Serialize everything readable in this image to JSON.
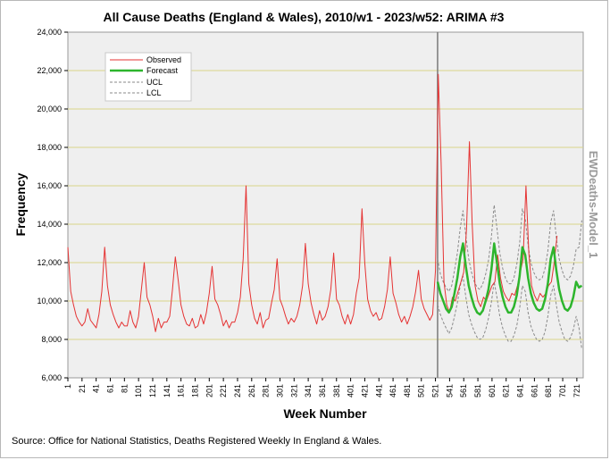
{
  "chart_data": {
    "type": "line",
    "title": "All Cause Deaths (England & Wales), 2010/w1 - 2023/w52: ARIMA #3",
    "xlabel": "Week Number",
    "ylabel": "Frequency",
    "side_label": "EWDeaths-Model_1",
    "source": "Source: Office for National Statistics, Deaths Registered Weekly In England & Wales.",
    "xlim": [
      1,
      730
    ],
    "ylim": [
      6000,
      24000
    ],
    "y_ticks": [
      6000,
      8000,
      10000,
      12000,
      14000,
      16000,
      18000,
      20000,
      22000,
      24000
    ],
    "y_tick_labels": [
      "6,000",
      "8,000",
      "10,000",
      "12,000",
      "14,000",
      "16,000",
      "18,000",
      "20,000",
      "22,000",
      "24,000"
    ],
    "x_ticks": [
      1,
      21,
      41,
      61,
      81,
      101,
      121,
      141,
      161,
      181,
      201,
      221,
      241,
      261,
      281,
      301,
      321,
      341,
      361,
      381,
      401,
      421,
      441,
      461,
      481,
      501,
      521,
      541,
      561,
      581,
      601,
      621,
      641,
      661,
      681,
      701,
      721
    ],
    "forecast_start_week": 524,
    "grid": true,
    "legend": {
      "position": "top-left",
      "entries": [
        {
          "name": "Observed",
          "color": "#e53333",
          "style": "solid"
        },
        {
          "name": "Forecast",
          "color": "#2db52d",
          "style": "solid"
        },
        {
          "name": "UCL",
          "color": "#8a8a8a",
          "style": "dashed"
        },
        {
          "name": "LCL",
          "color": "#8a8a8a",
          "style": "dashed"
        }
      ]
    },
    "series": [
      {
        "name": "Observed",
        "color": "#e53333",
        "weeks_per_point": 4,
        "start_week": 1,
        "values": [
          12800,
          10500,
          9800,
          9200,
          8900,
          8700,
          8900,
          9600,
          9000,
          8800,
          8600,
          9300,
          10500,
          12800,
          10800,
          9800,
          9300,
          8900,
          8600,
          8900,
          8700,
          8700,
          9500,
          8900,
          8600,
          9200,
          10600,
          12000,
          10200,
          9800,
          9200,
          8400,
          9100,
          8600,
          8900,
          8900,
          9200,
          10600,
          12300,
          11100,
          9800,
          9200,
          8800,
          8700,
          9100,
          8600,
          8700,
          9300,
          8800,
          9400,
          10400,
          11800,
          10100,
          9800,
          9300,
          8700,
          9000,
          8600,
          8900,
          8900,
          9400,
          10200,
          12200,
          16000,
          10900,
          9800,
          9100,
          8800,
          9400,
          8600,
          9000,
          9100,
          9900,
          10600,
          12200,
          10100,
          9700,
          9200,
          8800,
          9100,
          8900,
          9200,
          9800,
          10800,
          13000,
          10900,
          9900,
          9300,
          8800,
          9500,
          9000,
          9200,
          9700,
          10600,
          12500,
          10100,
          9800,
          9200,
          8800,
          9300,
          8800,
          9300,
          10400,
          11200,
          14800,
          12000,
          10100,
          9500,
          9200,
          9400,
          9000,
          9100,
          9700,
          10600,
          12300,
          10400,
          9900,
          9300,
          8900,
          9200,
          8800,
          9200,
          9700,
          10500,
          11600,
          10100,
          9600,
          9300,
          9000,
          9300,
          11600,
          21800,
          17200,
          11000,
          9800,
          9400,
          10200,
          10000,
          10500,
          11000,
          11500,
          13800,
          18300,
          14000,
          10800,
          10000,
          9700,
          10200,
          10000,
          10400,
          10800,
          11000,
          12400,
          11200,
          10500,
          10200,
          10000,
          10400,
          10300,
          10800,
          11500,
          12200,
          16000,
          12500,
          10800,
          10300,
          10000,
          10400,
          10200,
          10400,
          10800,
          11000,
          12000,
          13400
        ]
      },
      {
        "name": "Forecast",
        "color": "#2db52d",
        "weeks_per_point": 4,
        "start_week": 524,
        "values": [
          11000,
          10400,
          10000,
          9600,
          9400,
          9700,
          10400,
          11200,
          12300,
          13000,
          11800,
          10800,
          10200,
          9700,
          9400,
          9300,
          9500,
          10000,
          10600,
          11600,
          13000,
          12000,
          10900,
          10200,
          9700,
          9400,
          9400,
          9700,
          10300,
          11300,
          12800,
          12400,
          11200,
          10400,
          9900,
          9600,
          9500,
          9600,
          10100,
          10900,
          12200,
          12800,
          11600,
          10600,
          10000,
          9600,
          9500,
          9700,
          10200,
          11000,
          10700,
          10800
        ]
      },
      {
        "name": "UCL",
        "color": "#8a8a8a",
        "weeks_per_point": 4,
        "start_week": 524,
        "values": [
          12200,
          11400,
          11000,
          10700,
          10500,
          10800,
          11600,
          12500,
          13800,
          14700,
          13400,
          12200,
          11500,
          11000,
          10700,
          10600,
          10900,
          11400,
          12100,
          13300,
          15000,
          13800,
          12500,
          11700,
          11200,
          10900,
          10900,
          11200,
          11900,
          13000,
          14800,
          14300,
          12900,
          12000,
          11500,
          11200,
          11100,
          11200,
          11700,
          12600,
          14100,
          14700,
          13300,
          12200,
          11600,
          11200,
          11100,
          11300,
          11800,
          12700,
          12800,
          14200
        ]
      },
      {
        "name": "LCL",
        "color": "#8a8a8a",
        "weeks_per_point": 4,
        "start_week": 524,
        "values": [
          9800,
          9300,
          8900,
          8600,
          8300,
          8600,
          9200,
          9900,
          10800,
          11300,
          10200,
          9300,
          8800,
          8400,
          8100,
          8000,
          8100,
          8500,
          9100,
          9900,
          11000,
          10200,
          9200,
          8600,
          8200,
          7900,
          7900,
          8200,
          8700,
          9600,
          10800,
          10500,
          9400,
          8700,
          8300,
          8000,
          7900,
          8000,
          8400,
          9200,
          10300,
          10800,
          9800,
          8900,
          8400,
          8000,
          7900,
          8100,
          8500,
          9200,
          8600,
          7500
        ]
      }
    ]
  }
}
